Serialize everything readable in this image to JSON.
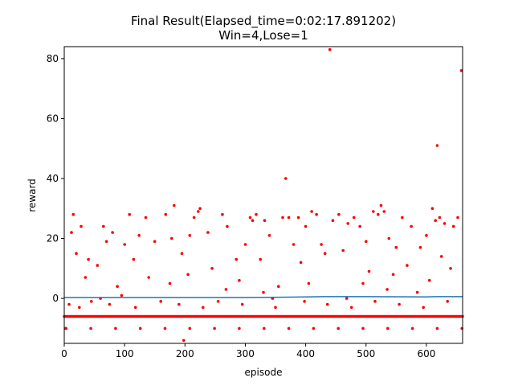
{
  "chart_data": {
    "type": "scatter",
    "title": "Final Result(Elapsed_time=0:02:17.891202)",
    "subtitle": "Win=4,Lose=1",
    "xlabel": "episode",
    "ylabel": "reward",
    "xlim": [
      0,
      660
    ],
    "ylim": [
      -15,
      84
    ],
    "xticks": [
      0,
      100,
      200,
      300,
      400,
      500,
      600
    ],
    "yticks": [
      0,
      20,
      40,
      60,
      80
    ],
    "grid": false,
    "colors": {
      "points": "#ff0000",
      "mean_line": "#1f77b4"
    },
    "scatter": {
      "baseline_value": -6,
      "low_value": -10,
      "outliers": [
        {
          "x": 12,
          "y": 22
        },
        {
          "x": 15,
          "y": 28
        },
        {
          "x": 20,
          "y": 15
        },
        {
          "x": 28,
          "y": 24
        },
        {
          "x": 40,
          "y": 13
        },
        {
          "x": 55,
          "y": 11
        },
        {
          "x": 65,
          "y": 24
        },
        {
          "x": 70,
          "y": 19
        },
        {
          "x": 80,
          "y": 22
        },
        {
          "x": 88,
          "y": 4
        },
        {
          "x": 100,
          "y": 18
        },
        {
          "x": 108,
          "y": 28
        },
        {
          "x": 115,
          "y": 13
        },
        {
          "x": 124,
          "y": 21
        },
        {
          "x": 135,
          "y": 27
        },
        {
          "x": 150,
          "y": 19
        },
        {
          "x": 168,
          "y": 28
        },
        {
          "x": 178,
          "y": 20
        },
        {
          "x": 182,
          "y": 31
        },
        {
          "x": 195,
          "y": 15
        },
        {
          "x": 208,
          "y": 21
        },
        {
          "x": 215,
          "y": 27
        },
        {
          "x": 222,
          "y": 29
        },
        {
          "x": 225,
          "y": 30
        },
        {
          "x": 238,
          "y": 22
        },
        {
          "x": 262,
          "y": 28
        },
        {
          "x": 270,
          "y": 24
        },
        {
          "x": 285,
          "y": 13
        },
        {
          "x": 300,
          "y": 18
        },
        {
          "x": 308,
          "y": 27
        },
        {
          "x": 312,
          "y": 26
        },
        {
          "x": 318,
          "y": 28
        },
        {
          "x": 325,
          "y": 13
        },
        {
          "x": 332,
          "y": 26
        },
        {
          "x": 340,
          "y": 21
        },
        {
          "x": 355,
          "y": 4
        },
        {
          "x": 362,
          "y": 27
        },
        {
          "x": 367,
          "y": 40
        },
        {
          "x": 372,
          "y": 27
        },
        {
          "x": 380,
          "y": 18
        },
        {
          "x": 388,
          "y": 27
        },
        {
          "x": 400,
          "y": 24
        },
        {
          "x": 410,
          "y": 29
        },
        {
          "x": 418,
          "y": 28
        },
        {
          "x": 426,
          "y": 18
        },
        {
          "x": 440,
          "y": 83
        },
        {
          "x": 445,
          "y": 26
        },
        {
          "x": 455,
          "y": 28
        },
        {
          "x": 462,
          "y": 16
        },
        {
          "x": 470,
          "y": 25
        },
        {
          "x": 480,
          "y": 27
        },
        {
          "x": 490,
          "y": 24
        },
        {
          "x": 500,
          "y": 19
        },
        {
          "x": 512,
          "y": 29
        },
        {
          "x": 520,
          "y": 28
        },
        {
          "x": 525,
          "y": 31
        },
        {
          "x": 530,
          "y": 29
        },
        {
          "x": 538,
          "y": 20
        },
        {
          "x": 550,
          "y": 17
        },
        {
          "x": 560,
          "y": 27
        },
        {
          "x": 575,
          "y": 24
        },
        {
          "x": 590,
          "y": 17
        },
        {
          "x": 600,
          "y": 21
        },
        {
          "x": 610,
          "y": 30
        },
        {
          "x": 615,
          "y": 26
        },
        {
          "x": 618,
          "y": 51
        },
        {
          "x": 622,
          "y": 27
        },
        {
          "x": 630,
          "y": 25
        },
        {
          "x": 645,
          "y": 24
        },
        {
          "x": 652,
          "y": 27
        },
        {
          "x": 658,
          "y": 76
        },
        {
          "x": 35,
          "y": 7
        },
        {
          "x": 60,
          "y": 0
        },
        {
          "x": 95,
          "y": 1
        },
        {
          "x": 140,
          "y": 7
        },
        {
          "x": 175,
          "y": 5
        },
        {
          "x": 205,
          "y": 8
        },
        {
          "x": 245,
          "y": 10
        },
        {
          "x": 268,
          "y": 3
        },
        {
          "x": 290,
          "y": 6
        },
        {
          "x": 330,
          "y": 2
        },
        {
          "x": 345,
          "y": 0
        },
        {
          "x": 392,
          "y": 12
        },
        {
          "x": 405,
          "y": 5
        },
        {
          "x": 432,
          "y": 15
        },
        {
          "x": 468,
          "y": 0
        },
        {
          "x": 495,
          "y": 5
        },
        {
          "x": 505,
          "y": 9
        },
        {
          "x": 535,
          "y": 3
        },
        {
          "x": 545,
          "y": 8
        },
        {
          "x": 568,
          "y": 11
        },
        {
          "x": 585,
          "y": 2
        },
        {
          "x": 605,
          "y": 6
        },
        {
          "x": 625,
          "y": 14
        },
        {
          "x": 640,
          "y": 10
        },
        {
          "x": 8,
          "y": -2
        },
        {
          "x": 25,
          "y": -3
        },
        {
          "x": 45,
          "y": -1
        },
        {
          "x": 75,
          "y": -2
        },
        {
          "x": 118,
          "y": -3
        },
        {
          "x": 160,
          "y": -1
        },
        {
          "x": 190,
          "y": -2
        },
        {
          "x": 230,
          "y": -3
        },
        {
          "x": 255,
          "y": -1
        },
        {
          "x": 295,
          "y": -2
        },
        {
          "x": 350,
          "y": -3
        },
        {
          "x": 398,
          "y": -1
        },
        {
          "x": 436,
          "y": -2
        },
        {
          "x": 476,
          "y": -3
        },
        {
          "x": 515,
          "y": -1
        },
        {
          "x": 555,
          "y": -2
        },
        {
          "x": 595,
          "y": -3
        },
        {
          "x": 635,
          "y": -1
        },
        {
          "x": 2,
          "y": -10
        },
        {
          "x": 198,
          "y": -14
        }
      ]
    },
    "mean_line": {
      "x": [
        0,
        100,
        200,
        300,
        360,
        400,
        430,
        500,
        600,
        615,
        660
      ],
      "y": [
        0.3,
        0.3,
        0.3,
        0.3,
        0.4,
        0.5,
        0.6,
        0.6,
        0.5,
        0.6,
        0.6
      ]
    }
  }
}
